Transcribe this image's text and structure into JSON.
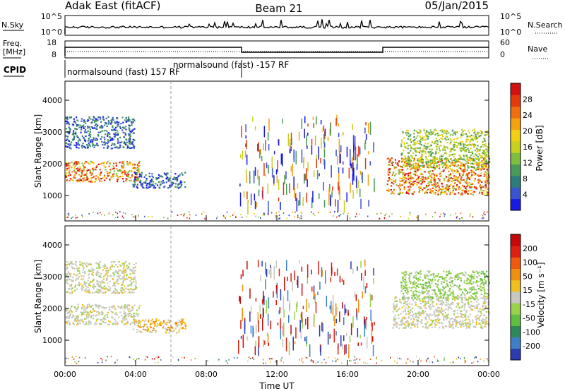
{
  "header": {
    "radar_title": "Adak East (fitACF)",
    "beam": "Beam 21",
    "date": "05/Jan/2015"
  },
  "labels": {
    "nsky": "N.Sky",
    "nsearch": "N.Search",
    "freq_line1": "Freq.",
    "freq_line2": "[MHz]",
    "nave": "Nave",
    "cpid": "CPID"
  },
  "noise_axis": {
    "left_ticks": [
      "10^5",
      "10^0"
    ],
    "right_ticks": [
      "10^5",
      "10^0"
    ]
  },
  "freq_axis": {
    "left_ticks": [
      "18",
      "8"
    ],
    "right_ticks": [
      "60",
      "0"
    ]
  },
  "cpid_segments": [
    {
      "label": "normalsound (fast) 157 RF",
      "start_h": 0,
      "end_h": 10
    },
    {
      "label": "normalsound (fast) -157 RF",
      "start_h": 10,
      "end_h": 24
    }
  ],
  "chart_data": [
    {
      "type": "heatmap",
      "panel": "power",
      "xlabel": "Time UT",
      "ylabel": "Slant Range [km]",
      "xlim_hours": [
        0,
        24
      ],
      "ylim": [
        200,
        4600
      ],
      "x_ticks": [
        "00:00",
        "04:00",
        "08:00",
        "12:00",
        "16:00",
        "20:00",
        "00:00"
      ],
      "y_ticks": [
        1000,
        2000,
        3000,
        4000
      ],
      "colorbar": {
        "label": "Power [dB]",
        "ticks": [
          4,
          8,
          12,
          16,
          20,
          24,
          28
        ],
        "range": [
          0,
          32
        ],
        "colors": [
          "#1919e6",
          "#3a54d0",
          "#2e7d7d",
          "#4a9a5a",
          "#7fbf3f",
          "#c8d21e",
          "#f0d010",
          "#f5a20c",
          "#f06e0c",
          "#e63a0c",
          "#d41010"
        ]
      },
      "scatter_regions": [
        {
          "t_start": 0.0,
          "t_end": 3.9,
          "r_start": 2500,
          "r_end": 3500,
          "level": "low"
        },
        {
          "t_start": 0.0,
          "t_end": 4.2,
          "r_start": 1450,
          "r_end": 2100,
          "level": "high"
        },
        {
          "t_start": 3.8,
          "t_end": 6.8,
          "r_start": 1250,
          "r_end": 1750,
          "level": "low"
        },
        {
          "t_start": 18.2,
          "t_end": 24.0,
          "r_start": 1050,
          "r_end": 2200,
          "level": "high"
        },
        {
          "t_start": 19.0,
          "t_end": 24.0,
          "r_start": 1900,
          "r_end": 3100,
          "level": "mid"
        },
        {
          "t_start": 9.8,
          "t_end": 17.5,
          "r_start": 800,
          "r_end": 3550,
          "level": "sparse"
        }
      ]
    },
    {
      "type": "heatmap",
      "panel": "velocity",
      "xlabel": "Time UT",
      "ylabel": "Slant Range [km]",
      "xlim_hours": [
        0,
        24
      ],
      "ylim": [
        200,
        4600
      ],
      "x_ticks": [
        "00:00",
        "04:00",
        "08:00",
        "12:00",
        "16:00",
        "20:00",
        "00:00"
      ],
      "y_ticks": [
        1000,
        2000,
        3000,
        4000
      ],
      "colorbar": {
        "label": "Velocity [m s⁻¹]",
        "ticks": [
          "200",
          "100",
          "50",
          "15",
          "-15",
          "-50",
          "-100",
          "-200"
        ],
        "colors": [
          "#2a3cb0",
          "#3e7fc8",
          "#2e8a5a",
          "#5fbf3f",
          "#9ad24a",
          "#c8c8c0",
          "#f0c020",
          "#f09010",
          "#f05a10",
          "#e02010",
          "#c80808"
        ]
      },
      "scatter_regions": [
        {
          "t_start": 0.0,
          "t_end": 4.0,
          "r_start": 2500,
          "r_end": 3500,
          "level": "gray"
        },
        {
          "t_start": 0.0,
          "t_end": 4.2,
          "r_start": 1500,
          "r_end": 2150,
          "level": "gray"
        },
        {
          "t_start": 3.8,
          "t_end": 6.8,
          "r_start": 1250,
          "r_end": 1700,
          "level": "orange"
        },
        {
          "t_start": 18.5,
          "t_end": 24.0,
          "r_start": 1400,
          "r_end": 2400,
          "level": "gray"
        },
        {
          "t_start": 19.0,
          "t_end": 24.0,
          "r_start": 2300,
          "r_end": 3200,
          "level": "green"
        },
        {
          "t_start": 9.8,
          "t_end": 17.5,
          "r_start": 800,
          "r_end": 3550,
          "level": "sparse"
        }
      ]
    }
  ]
}
